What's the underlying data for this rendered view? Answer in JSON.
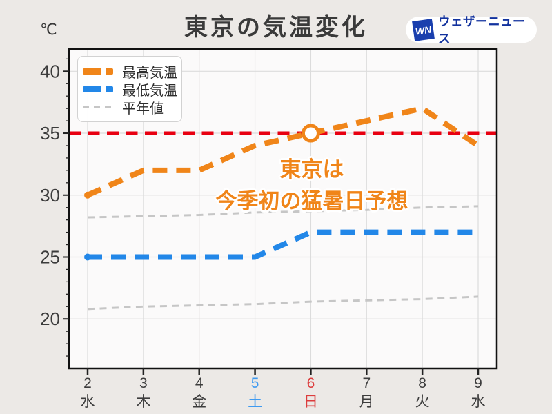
{
  "header": {
    "unit_label": "℃",
    "title": "東京の気温変化",
    "logo": {
      "badge": "WN",
      "text": "ウェザーニュース"
    }
  },
  "legend": {
    "items": [
      {
        "label": "最高気温",
        "color": "#f08519",
        "style": "thick-dash"
      },
      {
        "label": "最低気温",
        "color": "#2287e8",
        "style": "thick-dash"
      },
      {
        "label": "平年値",
        "color": "#c6c6c6",
        "style": "thin-dash"
      }
    ]
  },
  "annotation": {
    "line1": "東京は",
    "line2": "今季初の猛暑日予想",
    "color": "#f08519"
  },
  "chart_data": {
    "type": "line",
    "title": "東京の気温変化",
    "y_unit": "℃",
    "x_days": [
      2,
      3,
      4,
      5,
      6,
      7,
      8,
      9
    ],
    "x_tick_labels": [
      {
        "day": "2",
        "weekday": "水",
        "color": "#3d3d3d"
      },
      {
        "day": "3",
        "weekday": "木",
        "color": "#3d3d3d"
      },
      {
        "day": "4",
        "weekday": "金",
        "color": "#3d3d3d"
      },
      {
        "day": "5",
        "weekday": "土",
        "color": "#3f9af0"
      },
      {
        "day": "6",
        "weekday": "日",
        "color": "#dc3c3c"
      },
      {
        "day": "7",
        "weekday": "月",
        "color": "#3d3d3d"
      },
      {
        "day": "8",
        "weekday": "火",
        "color": "#3d3d3d"
      },
      {
        "day": "9",
        "weekday": "水",
        "color": "#3d3d3d"
      }
    ],
    "yticks": [
      20,
      25,
      30,
      35,
      40
    ],
    "ylim": [
      16,
      41.8
    ],
    "grid": true,
    "series": [
      {
        "name": "最高気温",
        "key": "max-temp",
        "values": [
          30,
          32,
          32,
          34,
          35,
          36,
          37,
          34
        ],
        "color": "#f08519",
        "width": 8,
        "dash": "21 13",
        "start_dot": true
      },
      {
        "name": "最低気温",
        "key": "min-temp",
        "values": [
          25,
          25,
          25,
          25,
          27,
          27,
          27,
          27
        ],
        "color": "#2287e8",
        "width": 8,
        "dash": "21 13",
        "start_dot": true
      },
      {
        "name": "平年値(最高)",
        "key": "normal-high",
        "values": [
          28.2,
          28.3,
          28.4,
          28.6,
          28.7,
          28.8,
          29.0,
          29.1
        ],
        "color": "#c6c6c6",
        "width": 3,
        "dash": "10 7.5",
        "start_dot": false
      },
      {
        "name": "平年値(最低)",
        "key": "normal-low",
        "values": [
          20.8,
          21.0,
          21.1,
          21.2,
          21.4,
          21.5,
          21.6,
          21.8
        ],
        "color": "#c6c6c6",
        "width": 3,
        "dash": "10 7.5",
        "start_dot": false
      }
    ],
    "threshold_line": {
      "value": 35,
      "color": "#e80011"
    },
    "highlight_marker": {
      "day": 6,
      "value": 35,
      "series": "最高気温"
    },
    "label_colors": {
      "saturday": "#3f9af0",
      "sunday": "#dc3c3c",
      "weekday": "#3d3d3d"
    }
  }
}
